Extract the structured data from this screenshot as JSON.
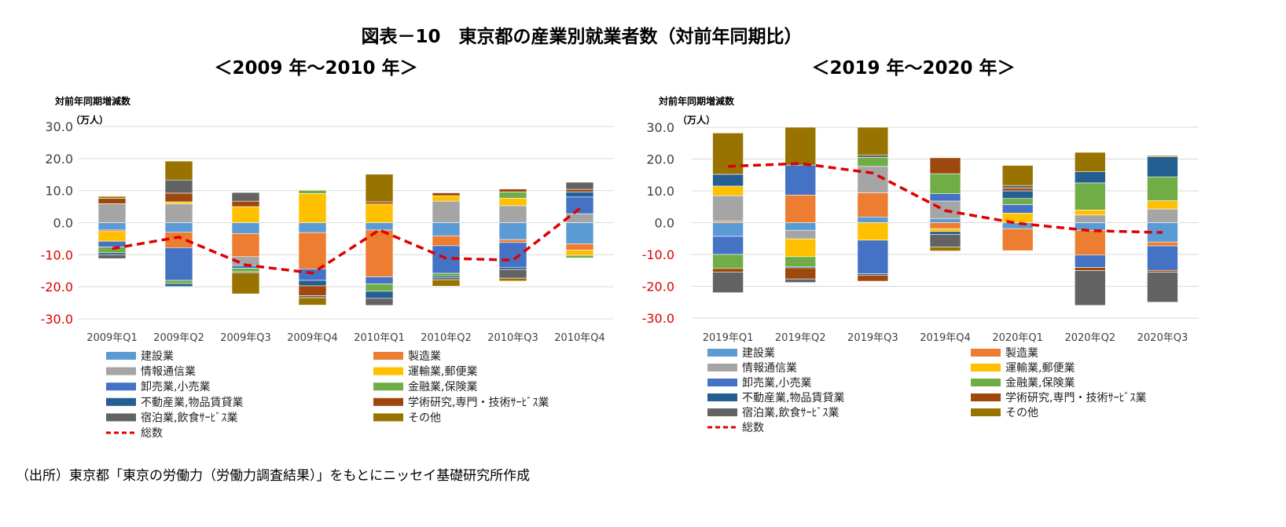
{
  "title": "図表－10　東京都の産業別就業者数（対前年同期比）",
  "source": "（出所）東京都「東京の労働力（労働力調査結果）」をもとにニッセイ基礎研究所作成",
  "colors": {
    "建設業": "#5B9BD5",
    "製造業": "#ED7D31",
    "情報通信業": "#A5A5A5",
    "運輸業,郵便業": "#FFC000",
    "卸売業,小売業": "#4472C4",
    "金融業,保険業": "#70AD47",
    "不動産業,物品賃貸業": "#255E91",
    "学術研究,専門・技術ｻｰﾋﾞｽ業": "#9E480E",
    "宿泊業,飲食ｻｰﾋﾞｽ業": "#636363",
    "その他": "#997300",
    "総数": "#E00000",
    "negative_tick": "#E00000",
    "positive_tick": "#404040"
  },
  "chart_data": [
    {
      "type": "bar",
      "stacked": true,
      "subtitle": "＜2009 年～2010 年＞",
      "ylabel": "対前年同期増減数",
      "unit": "（万人）",
      "ylim": [
        -30,
        30
      ],
      "yticks": [
        "30.0",
        "20.0",
        "10.0",
        "0.0",
        "-10.0",
        "-20.0",
        "-30.0"
      ],
      "grid": true,
      "legend": "bottom",
      "categories": [
        "2009年Q1",
        "2009年Q2",
        "2009年Q3",
        "2009年Q4",
        "2010年Q1",
        "2010年Q2",
        "2010年Q3",
        "2010年Q4"
      ],
      "series": [
        {
          "name": "建設業",
          "values": [
            -2.3,
            -3.0,
            -3.4,
            -3.1,
            -2.3,
            -4.1,
            -5.3,
            -6.6
          ]
        },
        {
          "name": "製造業",
          "values": [
            -0.5,
            -4.8,
            -7.2,
            -11.3,
            -14.6,
            -3.1,
            -0.9,
            -2.0
          ]
        },
        {
          "name": "情報通信業",
          "values": [
            5.9,
            5.9,
            -2.8,
            0,
            0,
            6.7,
            5.3,
            2.8
          ]
        },
        {
          "name": "運輸業,郵便業",
          "values": [
            -3.0,
            0.6,
            5.0,
            9.1,
            5.8,
            1.7,
            2.3,
            -1.6
          ]
        },
        {
          "name": "卸売業,小売業",
          "values": [
            -1.8,
            -10.2,
            -0.8,
            -3.6,
            -2.2,
            -8.6,
            -7.7,
            5.2
          ]
        },
        {
          "name": "金融業,保険業",
          "values": [
            -1.8,
            -1.0,
            -1.1,
            1.0,
            -2.3,
            -0.8,
            2.0,
            -0.8
          ]
        },
        {
          "name": "不動産業,物品賃貸業",
          "values": [
            -0.6,
            -0.9,
            -0.3,
            -1.7,
            -2.2,
            -0.6,
            -0.7,
            1.6
          ]
        },
        {
          "name": "学術研究,専門・技術ｻｰﾋﾞｽ業",
          "values": [
            1.7,
            2.7,
            1.7,
            -3.1,
            0.7,
            0.9,
            0.9,
            0.8
          ]
        },
        {
          "name": "宿泊業,飲食ｻｰﾋﾞｽ業",
          "values": [
            -1.2,
            4.1,
            2.7,
            -0.6,
            -2.2,
            -0.6,
            -2.7,
            2.2
          ]
        },
        {
          "name": "その他",
          "values": [
            0.6,
            5.9,
            -6.6,
            -2.3,
            8.6,
            -2.0,
            -0.9,
            0
          ]
        }
      ],
      "total": {
        "name": "総数",
        "type": "line",
        "style": "dashed",
        "values": [
          -8.1,
          -4.5,
          -13.2,
          -15.7,
          -2.3,
          -11.1,
          -11.7,
          4.4
        ]
      }
    },
    {
      "type": "bar",
      "stacked": true,
      "subtitle": "＜2019 年～2020 年＞",
      "ylabel": "対前年同期増減数",
      "unit": "（万人）",
      "ylim": [
        -30,
        30
      ],
      "yticks": [
        "30.0",
        "20.0",
        "10.0",
        "0.0",
        "-10.0",
        "-20.0",
        "-30.0"
      ],
      "grid": true,
      "legend": "bottom",
      "categories": [
        "2019年Q1",
        "2019年Q2",
        "2019年Q3",
        "2019年Q4",
        "2020年Q1",
        "2020年Q2",
        "2020年Q3"
      ],
      "series": [
        {
          "name": "建設業",
          "values": [
            -4.3,
            -2.4,
            1.8,
            1.3,
            -1.9,
            -2.4,
            -6.1
          ]
        },
        {
          "name": "製造業",
          "values": [
            0.5,
            8.7,
            7.6,
            -1.9,
            -6.9,
            -7.8,
            -1.2
          ]
        },
        {
          "name": "情報通信業",
          "values": [
            8.0,
            -2.7,
            8.3,
            5.5,
            0,
            2.4,
            4.3
          ]
        },
        {
          "name": "運輸業,郵便業",
          "values": [
            3.0,
            -5.6,
            -5.5,
            -0.9,
            3.0,
            1.6,
            2.6
          ]
        },
        {
          "name": "卸売業,小売業",
          "values": [
            -5.7,
            9.4,
            -10.6,
            2.3,
            2.7,
            -3.9,
            -7.7
          ]
        },
        {
          "name": "金融業,保険業",
          "values": [
            -4.4,
            -3.1,
            2.8,
            6.3,
            1.9,
            8.5,
            7.5
          ]
        },
        {
          "name": "不動産業,物品賃貸業",
          "values": [
            3.7,
            -0.4,
            -0.4,
            -0.9,
            2.4,
            3.5,
            6.3
          ]
        },
        {
          "name": "学術研究,専門・技術ｻｰﾋﾞｽ業",
          "values": [
            -1.1,
            -3.5,
            -1.9,
            5.0,
            0.9,
            -1.0,
            -0.6
          ]
        },
        {
          "name": "宿泊業,飲食ｻｰﾋﾞｽ業",
          "values": [
            -6.5,
            -1.1,
            0.8,
            -4.0,
            0.8,
            -10.9,
            -9.4
          ]
        },
        {
          "name": "その他",
          "values": [
            13.0,
            12.5,
            9.5,
            -1.2,
            6.3,
            6.1,
            0.4
          ]
        }
      ],
      "total": {
        "name": "総数",
        "type": "line",
        "style": "dashed",
        "values": [
          17.7,
          18.6,
          15.6,
          3.8,
          -0.2,
          -2.5,
          -3.1
        ]
      }
    }
  ]
}
